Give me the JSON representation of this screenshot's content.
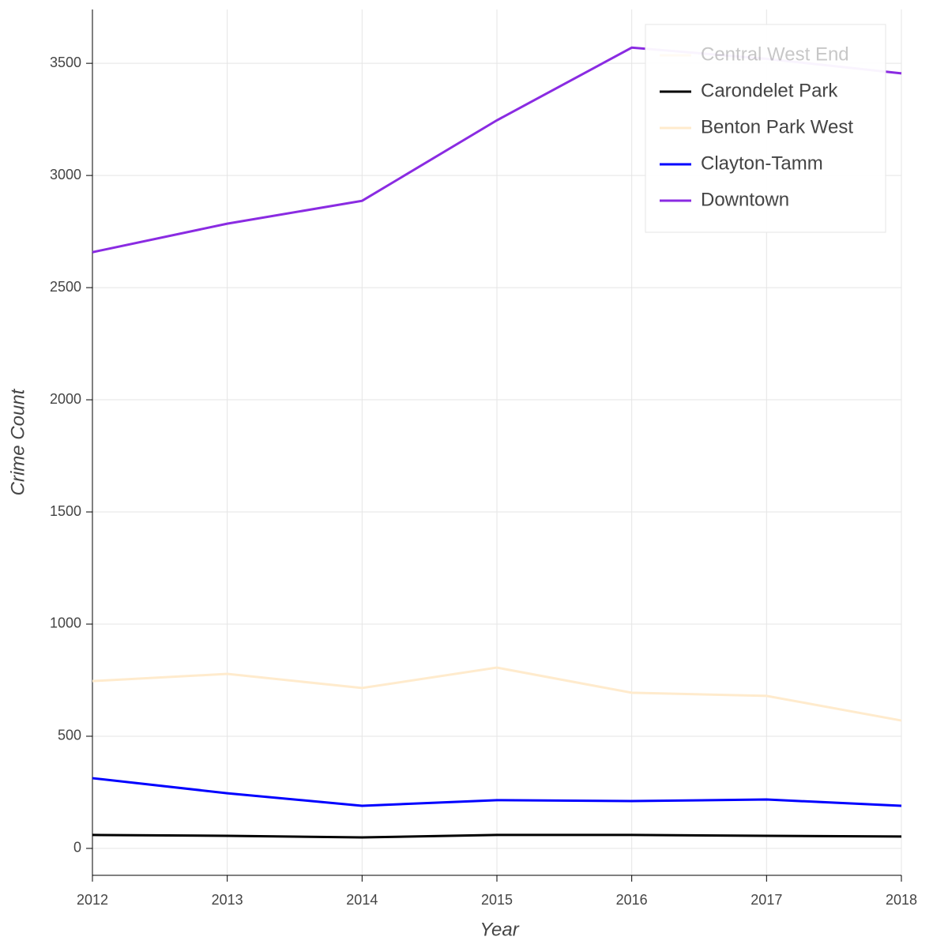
{
  "chart_data": {
    "type": "line",
    "x_label": "Year",
    "y_label": "Crime Count",
    "x": [
      2012,
      2013,
      2014,
      2015,
      2016,
      2017,
      2018
    ],
    "series": [
      {
        "name": "Central West End",
        "color": "#ffe4c4",
        "visible": false,
        "values": [
          null,
          null,
          null,
          null,
          null,
          null,
          null
        ]
      },
      {
        "name": "Carondelet Park",
        "color": "#000000",
        "visible": true,
        "values": [
          60,
          56,
          49,
          60,
          60,
          56,
          53
        ]
      },
      {
        "name": "Benton Park West",
        "color": "#ffebcd",
        "visible": true,
        "values": [
          746,
          778,
          715,
          806,
          694,
          680,
          570
        ]
      },
      {
        "name": "Clayton-Tamm",
        "color": "#0000ff",
        "visible": true,
        "values": [
          313,
          246,
          190,
          215,
          211,
          218,
          190
        ]
      },
      {
        "name": "Downtown",
        "color": "#8a2be2",
        "visible": true,
        "values": [
          2658,
          2785,
          2887,
          3246,
          3570,
          3520,
          3455
        ]
      }
    ],
    "xlim": [
      2012,
      2018
    ],
    "xticks": [
      2012,
      2013,
      2014,
      2015,
      2016,
      2017,
      2018
    ],
    "ylim": [
      -120,
      3740
    ],
    "yticks": [
      0,
      500,
      1000,
      1500,
      2000,
      2500,
      3000,
      3500
    ],
    "grid": true,
    "legend": "top-right"
  }
}
